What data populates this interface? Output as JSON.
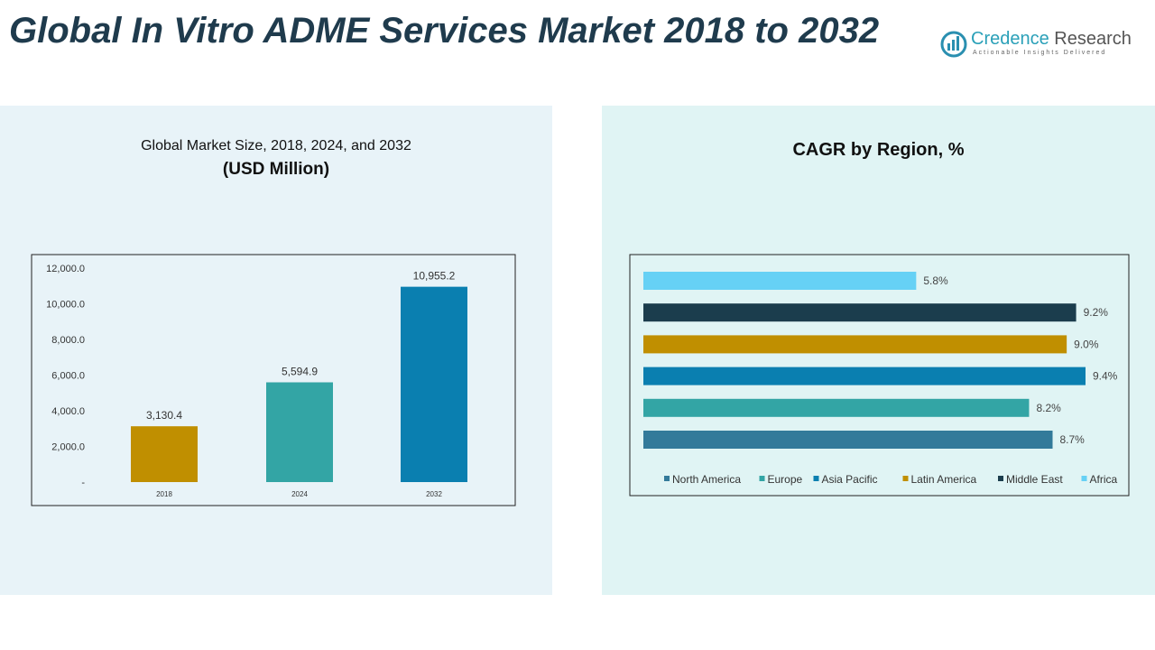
{
  "title": "Global In Vitro ADME Services Market 2018 to 2032",
  "logo": {
    "name_part1": "Credence",
    "name_part2": "Research",
    "tagline": "Actionable Insights Delivered"
  },
  "left_panel": {
    "subtitle": "Global Market Size, 2018, 2024, and 2032",
    "unit": "(USD Million)"
  },
  "right_panel": {
    "title": "CAGR by Region, %"
  },
  "chart_data": [
    {
      "type": "bar",
      "categories": [
        "2018",
        "2024",
        "2032"
      ],
      "values": [
        3130.4,
        5594.9,
        10955.2
      ],
      "data_labels": [
        "3,130.4",
        "5,594.9",
        "10,955.2"
      ],
      "colors": [
        "#c08f00",
        "#33a5a5",
        "#0a7fb0"
      ],
      "ylim": [
        0,
        12000
      ],
      "yticks": [
        "-",
        "2,000.0",
        "4,000.0",
        "6,000.0",
        "8,000.0",
        "10,000.0",
        "12,000.0"
      ],
      "grid": false
    },
    {
      "type": "bar",
      "orientation": "horizontal",
      "series": [
        {
          "name": "North America",
          "value": 8.7,
          "label": "8.7%",
          "color": "#337a9a"
        },
        {
          "name": "Europe",
          "value": 8.2,
          "label": "8.2%",
          "color": "#33a5a5"
        },
        {
          "name": "Asia Pacific",
          "value": 9.4,
          "label": "9.4%",
          "color": "#0a7fb0"
        },
        {
          "name": "Latin America",
          "value": 9.0,
          "label": "9.0%",
          "color": "#c08f00"
        },
        {
          "name": "Middle East",
          "value": 9.2,
          "label": "9.2%",
          "color": "#1b3d4d"
        },
        {
          "name": "Africa",
          "value": 5.8,
          "label": "5.8%",
          "color": "#66d1f5"
        }
      ],
      "legend": "bottom"
    }
  ]
}
